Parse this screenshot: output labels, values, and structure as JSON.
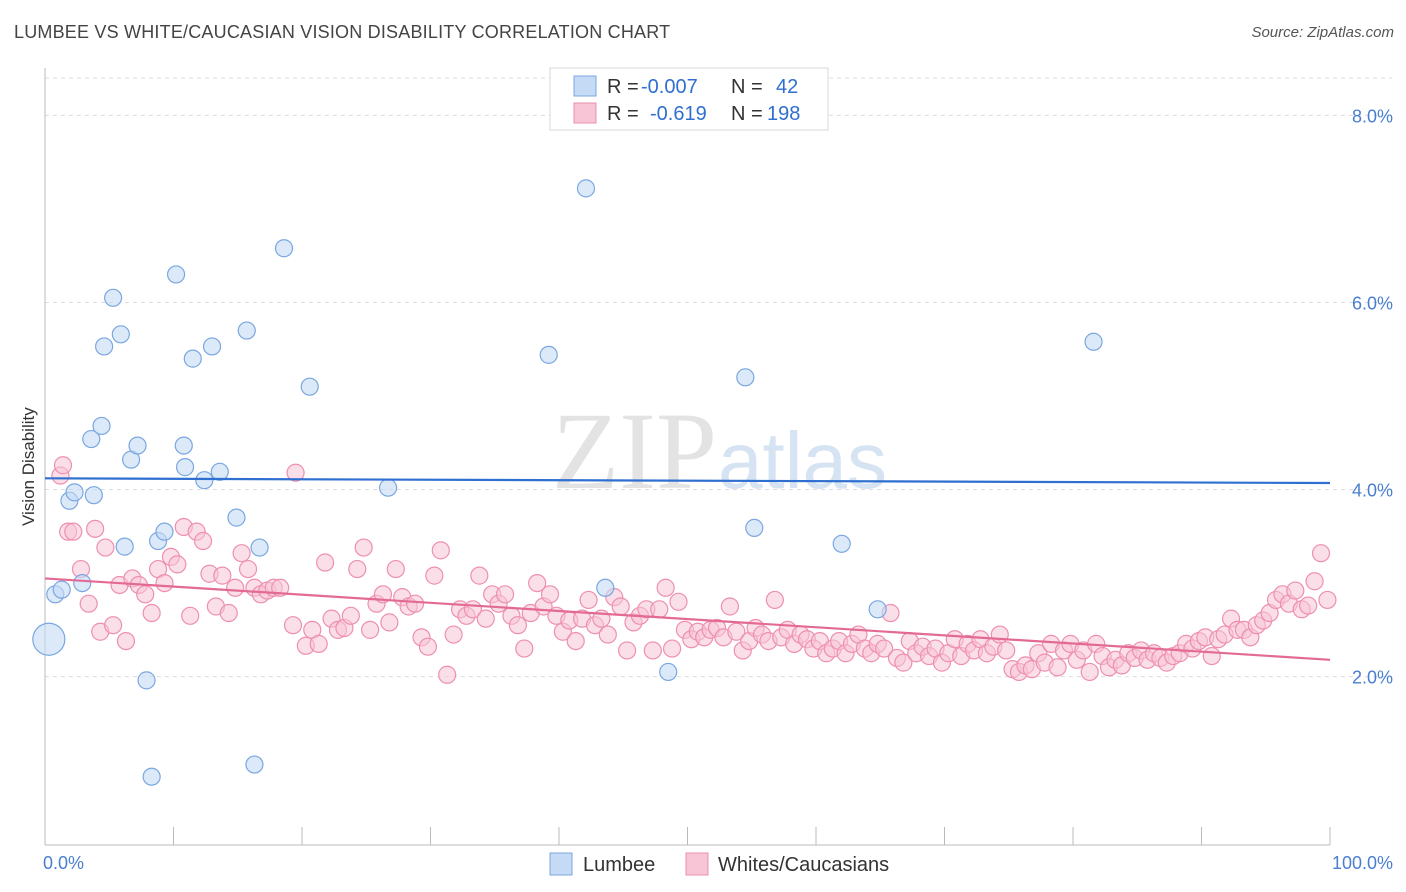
{
  "title": "LUMBEE VS WHITE/CAUCASIAN VISION DISABILITY CORRELATION CHART",
  "source": "Source: ZipAtlas.com",
  "watermark": {
    "zip": "ZIP",
    "atlas": "atlas"
  },
  "chart_data": {
    "type": "scatter",
    "title": "LUMBEE VS WHITE/CAUCASIAN VISION DISABILITY CORRELATION CHART",
    "xlabel": "",
    "ylabel": "Vision Disability",
    "xlim": [
      0,
      100
    ],
    "ylim": [
      0.2,
      8.4
    ],
    "x_tick_labels": [
      "0.0%",
      "100.0%"
    ],
    "y_ticks": [
      2.0,
      4.0,
      6.0,
      8.0
    ],
    "y_tick_labels": [
      "2.0%",
      "4.0%",
      "6.0%",
      "8.0%"
    ],
    "grid": true,
    "legend": {
      "placement": "top-center",
      "rows": [
        {
          "r_label": "R = ",
          "r_value": "-0.007",
          "n_label": "N = ",
          "n_value": "42"
        },
        {
          "r_label": "R = ",
          "r_value": "-0.619",
          "n_label": "N = ",
          "n_value": "198"
        }
      ]
    },
    "series": [
      {
        "name": "Lumbee",
        "color": "#7aa7e0",
        "fill": "#c5daf5",
        "trend": {
          "x": [
            0,
            100
          ],
          "y": [
            4.12,
            4.07
          ],
          "color": "#2f6fd0"
        },
        "points": [
          [
            0.3,
            2.4
          ],
          [
            0.8,
            2.88
          ],
          [
            1.3,
            2.93
          ],
          [
            1.9,
            3.88
          ],
          [
            2.3,
            3.97
          ],
          [
            2.9,
            3.0
          ],
          [
            3.6,
            4.54
          ],
          [
            3.8,
            3.94
          ],
          [
            4.4,
            4.68
          ],
          [
            4.6,
            5.53
          ],
          [
            5.3,
            6.05
          ],
          [
            5.9,
            5.66
          ],
          [
            6.2,
            3.39
          ],
          [
            6.7,
            4.32
          ],
          [
            7.2,
            4.47
          ],
          [
            7.9,
            1.96
          ],
          [
            8.3,
            0.93
          ],
          [
            8.8,
            3.45
          ],
          [
            9.3,
            3.55
          ],
          [
            10.2,
            6.3
          ],
          [
            10.9,
            4.24
          ],
          [
            10.8,
            4.47
          ],
          [
            11.5,
            5.4
          ],
          [
            12.4,
            4.1
          ],
          [
            13.0,
            5.53
          ],
          [
            13.6,
            4.19
          ],
          [
            14.9,
            3.7
          ],
          [
            15.7,
            5.7
          ],
          [
            16.3,
            1.06
          ],
          [
            16.7,
            3.38
          ],
          [
            18.6,
            6.58
          ],
          [
            20.6,
            5.1
          ],
          [
            26.7,
            4.02
          ],
          [
            39.2,
            5.44
          ],
          [
            42.1,
            7.22
          ],
          [
            43.6,
            2.95
          ],
          [
            48.5,
            2.05
          ],
          [
            54.5,
            5.2
          ],
          [
            55.2,
            3.59
          ],
          [
            62.0,
            3.42
          ],
          [
            64.8,
            2.72
          ],
          [
            81.6,
            5.58
          ]
        ]
      },
      {
        "name": "Whites/Caucasians",
        "color": "#ee8fb0",
        "fill": "#f7c5d6",
        "trend": {
          "x": [
            0,
            100
          ],
          "y": [
            3.05,
            2.18
          ],
          "color": "#e36a95"
        },
        "points": [
          [
            1.2,
            4.15
          ],
          [
            1.4,
            4.26
          ],
          [
            1.8,
            3.55
          ],
          [
            2.2,
            3.55
          ],
          [
            2.8,
            3.15
          ],
          [
            3.4,
            2.78
          ],
          [
            3.9,
            3.58
          ],
          [
            4.3,
            2.48
          ],
          [
            4.7,
            3.38
          ],
          [
            5.3,
            2.55
          ],
          [
            5.8,
            2.98
          ],
          [
            6.3,
            2.38
          ],
          [
            6.8,
            3.05
          ],
          [
            7.3,
            2.98
          ],
          [
            7.8,
            2.88
          ],
          [
            8.3,
            2.68
          ],
          [
            8.8,
            3.15
          ],
          [
            9.3,
            3.0
          ],
          [
            9.8,
            3.28
          ],
          [
            10.3,
            3.2
          ],
          [
            10.8,
            3.6
          ],
          [
            11.3,
            2.65
          ],
          [
            11.8,
            3.55
          ],
          [
            12.3,
            3.45
          ],
          [
            12.8,
            3.1
          ],
          [
            13.3,
            2.75
          ],
          [
            13.8,
            3.08
          ],
          [
            14.3,
            2.68
          ],
          [
            14.8,
            2.95
          ],
          [
            15.3,
            3.32
          ],
          [
            15.8,
            3.15
          ],
          [
            16.3,
            2.95
          ],
          [
            16.8,
            2.88
          ],
          [
            17.3,
            2.92
          ],
          [
            17.8,
            2.95
          ],
          [
            18.3,
            2.95
          ],
          [
            19.3,
            2.55
          ],
          [
            19.5,
            4.18
          ],
          [
            20.3,
            2.33
          ],
          [
            20.8,
            2.5
          ],
          [
            21.3,
            2.35
          ],
          [
            21.8,
            3.22
          ],
          [
            22.3,
            2.62
          ],
          [
            22.8,
            2.5
          ],
          [
            23.3,
            2.52
          ],
          [
            23.8,
            2.65
          ],
          [
            24.3,
            3.15
          ],
          [
            24.8,
            3.38
          ],
          [
            25.3,
            2.5
          ],
          [
            25.8,
            2.78
          ],
          [
            26.3,
            2.88
          ],
          [
            26.8,
            2.58
          ],
          [
            27.3,
            3.15
          ],
          [
            27.8,
            2.85
          ],
          [
            28.3,
            2.75
          ],
          [
            28.8,
            2.78
          ],
          [
            29.3,
            2.42
          ],
          [
            29.8,
            2.32
          ],
          [
            30.3,
            3.08
          ],
          [
            30.8,
            3.35
          ],
          [
            31.3,
            2.02
          ],
          [
            31.8,
            2.45
          ],
          [
            32.3,
            2.72
          ],
          [
            32.8,
            2.65
          ],
          [
            33.3,
            2.72
          ],
          [
            33.8,
            3.08
          ],
          [
            34.3,
            2.62
          ],
          [
            34.8,
            2.88
          ],
          [
            35.3,
            2.78
          ],
          [
            35.8,
            2.88
          ],
          [
            36.3,
            2.65
          ],
          [
            36.8,
            2.55
          ],
          [
            37.3,
            2.3
          ],
          [
            37.8,
            2.68
          ],
          [
            38.3,
            3.0
          ],
          [
            38.8,
            2.75
          ],
          [
            39.3,
            2.88
          ],
          [
            39.8,
            2.65
          ],
          [
            40.3,
            2.48
          ],
          [
            40.8,
            2.6
          ],
          [
            41.3,
            2.38
          ],
          [
            41.8,
            2.62
          ],
          [
            42.3,
            2.82
          ],
          [
            42.8,
            2.55
          ],
          [
            43.3,
            2.62
          ],
          [
            43.8,
            2.45
          ],
          [
            44.3,
            2.85
          ],
          [
            44.8,
            2.75
          ],
          [
            45.3,
            2.28
          ],
          [
            45.8,
            2.58
          ],
          [
            46.3,
            2.65
          ],
          [
            46.8,
            2.72
          ],
          [
            47.3,
            2.28
          ],
          [
            47.8,
            2.72
          ],
          [
            48.3,
            2.95
          ],
          [
            48.8,
            2.3
          ],
          [
            49.3,
            2.8
          ],
          [
            49.8,
            2.5
          ],
          [
            50.3,
            2.4
          ],
          [
            50.8,
            2.48
          ],
          [
            51.3,
            2.42
          ],
          [
            51.8,
            2.5
          ],
          [
            52.3,
            2.52
          ],
          [
            52.8,
            2.42
          ],
          [
            53.3,
            2.75
          ],
          [
            53.8,
            2.48
          ],
          [
            54.3,
            2.28
          ],
          [
            54.8,
            2.38
          ],
          [
            55.3,
            2.52
          ],
          [
            55.8,
            2.45
          ],
          [
            56.3,
            2.38
          ],
          [
            56.8,
            2.82
          ],
          [
            57.3,
            2.42
          ],
          [
            57.8,
            2.5
          ],
          [
            58.3,
            2.35
          ],
          [
            58.8,
            2.45
          ],
          [
            59.3,
            2.4
          ],
          [
            59.8,
            2.3
          ],
          [
            60.3,
            2.38
          ],
          [
            60.8,
            2.25
          ],
          [
            61.3,
            2.3
          ],
          [
            61.8,
            2.38
          ],
          [
            62.3,
            2.25
          ],
          [
            62.8,
            2.35
          ],
          [
            63.3,
            2.45
          ],
          [
            63.8,
            2.3
          ],
          [
            64.3,
            2.25
          ],
          [
            64.8,
            2.35
          ],
          [
            65.3,
            2.3
          ],
          [
            65.8,
            2.68
          ],
          [
            66.3,
            2.2
          ],
          [
            66.8,
            2.15
          ],
          [
            67.3,
            2.38
          ],
          [
            67.8,
            2.25
          ],
          [
            68.3,
            2.32
          ],
          [
            68.8,
            2.22
          ],
          [
            69.3,
            2.3
          ],
          [
            69.8,
            2.15
          ],
          [
            70.3,
            2.25
          ],
          [
            70.8,
            2.4
          ],
          [
            71.3,
            2.22
          ],
          [
            71.8,
            2.35
          ],
          [
            72.3,
            2.28
          ],
          [
            72.8,
            2.4
          ],
          [
            73.3,
            2.25
          ],
          [
            73.8,
            2.32
          ],
          [
            74.3,
            2.45
          ],
          [
            74.8,
            2.28
          ],
          [
            75.3,
            2.08
          ],
          [
            75.8,
            2.05
          ],
          [
            76.3,
            2.12
          ],
          [
            76.8,
            2.08
          ],
          [
            77.3,
            2.25
          ],
          [
            77.8,
            2.15
          ],
          [
            78.3,
            2.35
          ],
          [
            78.8,
            2.1
          ],
          [
            79.3,
            2.28
          ],
          [
            79.8,
            2.35
          ],
          [
            80.3,
            2.18
          ],
          [
            80.8,
            2.28
          ],
          [
            81.3,
            2.05
          ],
          [
            81.8,
            2.35
          ],
          [
            82.3,
            2.22
          ],
          [
            82.8,
            2.1
          ],
          [
            83.3,
            2.18
          ],
          [
            83.8,
            2.12
          ],
          [
            84.3,
            2.25
          ],
          [
            84.8,
            2.2
          ],
          [
            85.3,
            2.28
          ],
          [
            85.8,
            2.18
          ],
          [
            86.3,
            2.25
          ],
          [
            86.8,
            2.2
          ],
          [
            87.3,
            2.15
          ],
          [
            87.8,
            2.22
          ],
          [
            88.3,
            2.25
          ],
          [
            88.8,
            2.35
          ],
          [
            89.3,
            2.3
          ],
          [
            89.8,
            2.38
          ],
          [
            90.3,
            2.42
          ],
          [
            90.8,
            2.22
          ],
          [
            91.3,
            2.4
          ],
          [
            91.8,
            2.45
          ],
          [
            92.3,
            2.62
          ],
          [
            92.8,
            2.5
          ],
          [
            93.3,
            2.5
          ],
          [
            93.8,
            2.42
          ],
          [
            94.3,
            2.55
          ],
          [
            94.8,
            2.6
          ],
          [
            95.3,
            2.68
          ],
          [
            95.8,
            2.82
          ],
          [
            96.3,
            2.88
          ],
          [
            96.8,
            2.78
          ],
          [
            97.3,
            2.92
          ],
          [
            97.8,
            2.72
          ],
          [
            98.3,
            2.76
          ],
          [
            98.8,
            3.02
          ],
          [
            99.3,
            3.32
          ],
          [
            99.8,
            2.82
          ]
        ]
      }
    ]
  },
  "bottom_legend": [
    {
      "label": "Lumbee",
      "swatch_fill": "#c5daf5",
      "swatch_stroke": "#7aa7e0"
    },
    {
      "label": "Whites/Caucasians",
      "swatch_fill": "#f7c5d6",
      "swatch_stroke": "#ee8fb0"
    }
  ]
}
